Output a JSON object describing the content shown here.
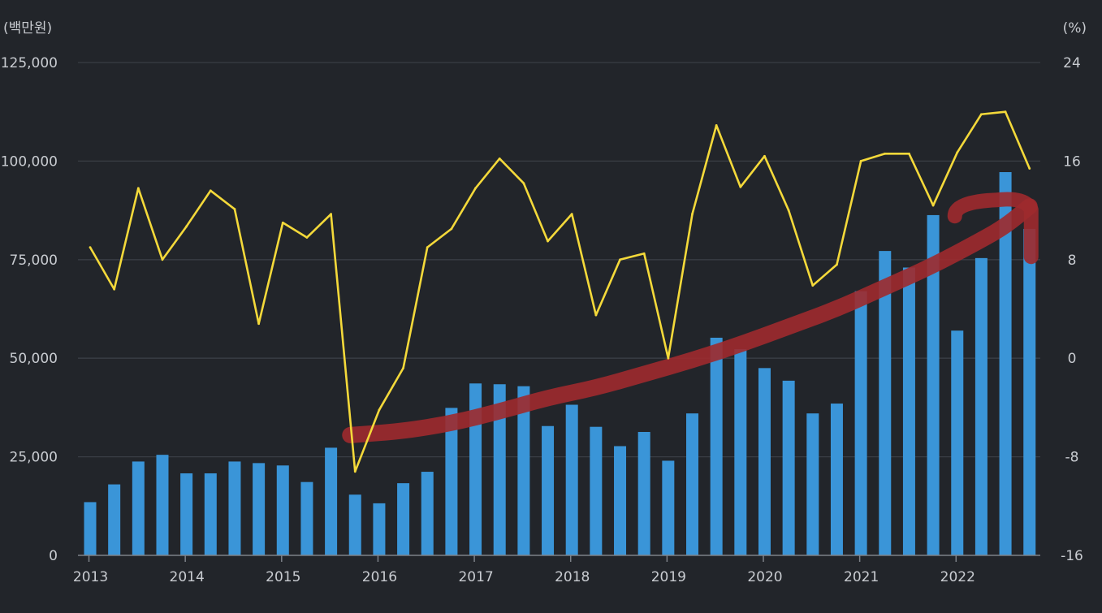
{
  "chart_data": {
    "type": "bar",
    "left_unit": "(백만원)",
    "right_unit": "(%)",
    "x_ticks": [
      "2013",
      "2014",
      "2015",
      "2016",
      "2017",
      "2018",
      "2019",
      "2020",
      "2021",
      "2022"
    ],
    "y_left_ticks": [
      "125,000",
      "100,000",
      "75,000",
      "50,000",
      "25,000",
      "0"
    ],
    "y_right_ticks": [
      "24",
      "16",
      "8",
      "0",
      "-8",
      "-16"
    ],
    "y_left_range": [
      0,
      125000
    ],
    "y_right_range": [
      -16,
      24
    ],
    "grid": true,
    "quarters": [
      "2013Q1",
      "2013Q2",
      "2013Q3",
      "2013Q4",
      "2014Q1",
      "2014Q2",
      "2014Q3",
      "2014Q4",
      "2015Q1",
      "2015Q2",
      "2015Q3",
      "2015Q4",
      "2016Q1",
      "2016Q2",
      "2016Q3",
      "2016Q4",
      "2017Q1",
      "2017Q2",
      "2017Q3",
      "2017Q4",
      "2018Q1",
      "2018Q2",
      "2018Q3",
      "2018Q4",
      "2019Q1",
      "2019Q2",
      "2019Q3",
      "2019Q4",
      "2020Q1",
      "2020Q2",
      "2020Q3",
      "2020Q4",
      "2021Q1",
      "2021Q2",
      "2021Q3",
      "2021Q4",
      "2022Q1",
      "2022Q2",
      "2022Q3",
      "2022Q4"
    ],
    "series": [
      {
        "type": "bar",
        "axis": "left",
        "color": "#3a95d8",
        "values": [
          13500,
          18000,
          23800,
          25500,
          20800,
          20800,
          23800,
          23400,
          22800,
          18600,
          27300,
          15400,
          13200,
          18300,
          21200,
          37400,
          43600,
          43400,
          42900,
          32800,
          38200,
          32600,
          27700,
          31300,
          24000,
          36000,
          55200,
          52300,
          47500,
          44300,
          36000,
          38500,
          67000,
          77200,
          73000,
          86300,
          57000,
          75400,
          97200,
          82800
        ]
      },
      {
        "type": "line",
        "axis": "right",
        "color": "#f4d93a",
        "values": [
          9.0,
          5.6,
          13.8,
          8.0,
          10.7,
          13.6,
          12.1,
          2.8,
          11.0,
          9.8,
          11.7,
          -9.2,
          -4.2,
          -0.8,
          9.0,
          10.5,
          13.8,
          16.2,
          14.2,
          9.5,
          11.7,
          3.5,
          8.0,
          8.5,
          0.0,
          11.7,
          18.9,
          13.9,
          16.4,
          12.0,
          5.9,
          7.6,
          16.0,
          16.6,
          16.6,
          12.4,
          16.7,
          19.8,
          20.0,
          15.4
        ]
      }
    ],
    "annotation": {
      "type": "freehand-trend-stroke",
      "color": "#9e2a2e",
      "axis": "left",
      "x_quarters": [
        11,
        13,
        15,
        17,
        19,
        21,
        23,
        25,
        27,
        29,
        31,
        33,
        35,
        37,
        38,
        39
      ],
      "values": [
        30500,
        31500,
        33500,
        36500,
        40000,
        42500,
        46000,
        49500,
        53500,
        58000,
        62500,
        68000,
        73500,
        80000,
        83500,
        88500
      ]
    }
  }
}
